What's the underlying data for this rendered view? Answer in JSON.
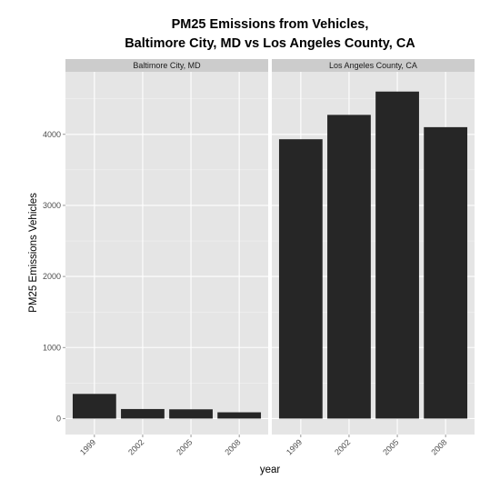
{
  "chart_data": {
    "type": "bar",
    "title_lines": [
      "PM25 Emissions from Vehicles,",
      "Baltimore City, MD vs Los Angeles County, CA"
    ],
    "xlabel": "year",
    "ylabel": "PM25 Emissions Vehicles",
    "categories": [
      "1999",
      "2002",
      "2005",
      "2008"
    ],
    "yticks": [
      0,
      1000,
      2000,
      3000,
      4000
    ],
    "ylim": [
      -225,
      4880
    ],
    "grid": true,
    "colors": {
      "bar": "#262626",
      "panel_background": "#e5e5e5",
      "grid_major": "#ffffff",
      "grid_minor": "#f2f2f2",
      "strip_background": "#cccccc"
    },
    "panels": [
      {
        "name": "Baltimore City, MD",
        "values": [
          347,
          134,
          130,
          88
        ]
      },
      {
        "name": "Los Angeles County, CA",
        "values": [
          3931,
          4274,
          4602,
          4101
        ]
      }
    ]
  }
}
